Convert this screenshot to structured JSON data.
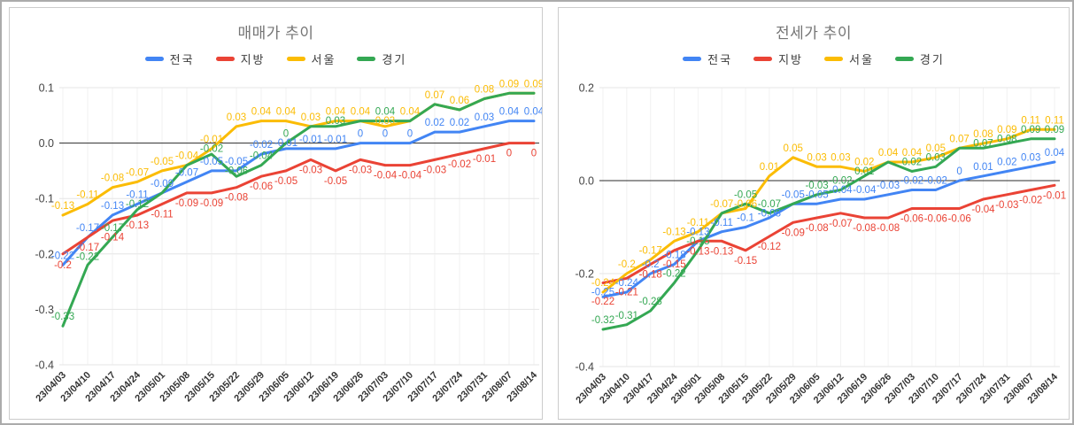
{
  "styles": {
    "title_color": "#757575",
    "axis_label_color": "#444444",
    "x_label_color": "#333333",
    "grid_color": "#e6e6e6",
    "minor_grid_color": "#f2f2f2",
    "zero_line_color": "#2b2b2b",
    "panel_border_color": "#cccccc",
    "frame_border_color": "#ababab",
    "series_colors": {
      "blue": "#4285F4",
      "red": "#EA4335",
      "yellow": "#FBBC04",
      "green": "#34A853"
    }
  },
  "chart_data": [
    {
      "type": "line",
      "title": "매매가 추이",
      "legend_position": "top",
      "grid": true,
      "ylim": [
        -0.4,
        0.1
      ],
      "yticks": [
        "0.1",
        "0.0",
        "-0.1",
        "-0.2",
        "-0.3",
        "-0.4"
      ],
      "categories": [
        "23/04/03",
        "23/04/10",
        "23/04/17",
        "23/04/24",
        "23/05/01",
        "23/05/08",
        "23/05/15",
        "23/05/22",
        "23/05/29",
        "23/06/05",
        "23/06/12",
        "23/06/19",
        "23/06/26",
        "23/07/03",
        "23/07/10",
        "23/07/17",
        "23/07/24",
        "23/07/31",
        "23/08/07",
        "23/08/14"
      ],
      "series": [
        {
          "name": "전국",
          "color": "#4285F4",
          "label_side": "above",
          "values": [
            -0.22,
            -0.17,
            -0.13,
            -0.11,
            -0.09,
            -0.07,
            -0.05,
            -0.05,
            -0.02,
            -0.01,
            -0.01,
            -0.01,
            0,
            0,
            0,
            0.02,
            0.02,
            0.03,
            0.04,
            0.04
          ]
        },
        {
          "name": "지방",
          "color": "#EA4335",
          "label_side": "below",
          "values": [
            -0.2,
            -0.17,
            -0.14,
            -0.13,
            -0.11,
            -0.09,
            -0.09,
            -0.08,
            -0.06,
            -0.05,
            -0.03,
            -0.05,
            -0.03,
            -0.04,
            -0.04,
            -0.03,
            -0.02,
            -0.01,
            0,
            0
          ]
        },
        {
          "name": "서울",
          "color": "#FBBC04",
          "label_side": "above",
          "values": [
            -0.13,
            -0.11,
            -0.08,
            -0.07,
            -0.05,
            -0.04,
            -0.01,
            0.03,
            0.04,
            0.04,
            0.03,
            0.04,
            0.04,
            0.03,
            0.04,
            0.07,
            0.06,
            0.08,
            0.09,
            0.09
          ]
        },
        {
          "name": "경기",
          "color": "#34A853",
          "label_side": "above",
          "values": [
            -0.33,
            -0.22,
            -0.17,
            -0.12,
            -0.09,
            -0.04,
            -0.02,
            -0.06,
            -0.04,
            0,
            0.03,
            0.03,
            0.04,
            0.04,
            0.04,
            0.07,
            0.06,
            0.08,
            0.09,
            0.09
          ]
        }
      ]
    },
    {
      "type": "line",
      "title": "전세가 추이",
      "legend_position": "top",
      "grid": true,
      "ylim": [
        -0.4,
        0.2
      ],
      "yticks": [
        "0.2",
        "0.0",
        "-0.2",
        "-0.4"
      ],
      "categories": [
        "23/04/03",
        "23/04/10",
        "23/04/17",
        "23/04/24",
        "23/05/01",
        "23/05/08",
        "23/05/15",
        "23/05/22",
        "23/05/29",
        "23/06/05",
        "23/06/12",
        "23/06/19",
        "23/06/26",
        "23/07/03",
        "23/07/10",
        "23/07/17",
        "23/07/24",
        "23/07/31",
        "23/08/07",
        "23/08/14"
      ],
      "series": [
        {
          "name": "전국",
          "color": "#4285F4",
          "label_side": "above",
          "values": [
            -0.25,
            -0.24,
            -0.2,
            -0.18,
            -0.13,
            -0.11,
            -0.1,
            -0.08,
            -0.05,
            -0.05,
            -0.04,
            -0.04,
            -0.03,
            -0.02,
            -0.02,
            0,
            0.01,
            0.02,
            0.03,
            0.04
          ]
        },
        {
          "name": "지방",
          "color": "#EA4335",
          "label_side": "below",
          "values": [
            -0.22,
            -0.21,
            -0.18,
            -0.15,
            -0.13,
            -0.13,
            -0.15,
            -0.12,
            -0.09,
            -0.08,
            -0.07,
            -0.08,
            -0.08,
            -0.06,
            -0.06,
            -0.06,
            -0.04,
            -0.03,
            -0.02,
            -0.01
          ]
        },
        {
          "name": "서울",
          "color": "#FBBC04",
          "label_side": "above",
          "values": [
            -0.24,
            -0.2,
            -0.17,
            -0.13,
            -0.11,
            -0.07,
            -0.06,
            0.01,
            0.05,
            0.03,
            0.03,
            0.02,
            0.04,
            0.04,
            0.05,
            0.07,
            0.08,
            0.09,
            0.11,
            0.11
          ]
        },
        {
          "name": "경기",
          "color": "#34A853",
          "label_side": "above",
          "values": [
            -0.32,
            -0.31,
            -0.28,
            -0.22,
            -0.15,
            -0.07,
            -0.05,
            -0.07,
            -0.05,
            -0.03,
            -0.02,
            0.01,
            0.04,
            0.02,
            0.03,
            0.07,
            0.07,
            0.08,
            0.09,
            0.09
          ]
        }
      ]
    }
  ]
}
